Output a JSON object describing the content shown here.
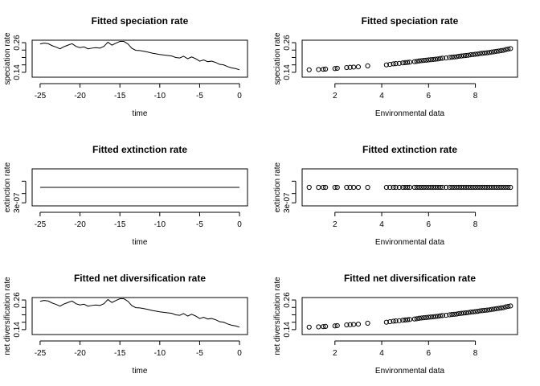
{
  "chart_data": [
    {
      "type": "line",
      "title": "Fitted speciation rate",
      "xlabel": "time",
      "ylabel": "speciation rate",
      "xlim": [
        -26,
        1
      ],
      "ylim": [
        0.12,
        0.27
      ],
      "xticks": [
        -25,
        -20,
        -15,
        -10,
        -5,
        0
      ],
      "xtick_labels": [
        "-25",
        "-20",
        "-15",
        "-10",
        "-5",
        "0"
      ],
      "yticks": [
        0.14,
        0.26
      ],
      "ytick_labels": [
        "0.14",
        "0.26"
      ],
      "yminor_ticks": [
        0.17,
        0.2,
        0.23
      ],
      "series": [
        {
          "x": [
            -25,
            -24.5,
            -24,
            -23.5,
            -23,
            -22.5,
            -22,
            -21.5,
            -21,
            -20.5,
            -20,
            -19.5,
            -19,
            -18.5,
            -18,
            -17.5,
            -17,
            -16.5,
            -16,
            -15.5,
            -15,
            -14.5,
            -14,
            -13.5,
            -13,
            -12.5,
            -12,
            -11.5,
            -11,
            -10.5,
            -10,
            -9.5,
            -9,
            -8.5,
            -8,
            -7.5,
            -7,
            -6.5,
            -6,
            -5.5,
            -5,
            -4.5,
            -4,
            -3.5,
            -3,
            -2.5,
            -2,
            -1.5,
            -1,
            -0.5,
            0
          ],
          "y": [
            0.255,
            0.258,
            0.256,
            0.248,
            0.242,
            0.235,
            0.244,
            0.25,
            0.256,
            0.245,
            0.24,
            0.243,
            0.235,
            0.238,
            0.24,
            0.238,
            0.245,
            0.262,
            0.25,
            0.258,
            0.265,
            0.265,
            0.255,
            0.237,
            0.229,
            0.228,
            0.225,
            0.222,
            0.218,
            0.215,
            0.212,
            0.21,
            0.208,
            0.206,
            0.2,
            0.198,
            0.205,
            0.195,
            0.202,
            0.195,
            0.185,
            0.19,
            0.183,
            0.185,
            0.18,
            0.172,
            0.17,
            0.163,
            0.158,
            0.155,
            0.15
          ]
        }
      ]
    },
    {
      "type": "scatter",
      "title": "Fitted speciation rate",
      "xlabel": "Environmental data",
      "ylabel": "speciation rate",
      "xlim": [
        0.6,
        9.8
      ],
      "ylim": [
        0.12,
        0.27
      ],
      "xticks": [
        2,
        4,
        6,
        8
      ],
      "xtick_labels": [
        "2",
        "4",
        "6",
        "8"
      ],
      "yticks": [
        0.14,
        0.26
      ],
      "ytick_labels": [
        "0.14",
        "0.26"
      ],
      "yminor_ticks": [
        0.17,
        0.2,
        0.23
      ],
      "x": [
        0.9,
        1.3,
        1.5,
        1.6,
        2.0,
        2.1,
        2.5,
        2.65,
        2.8,
        3.0,
        3.4,
        4.2,
        4.35,
        4.5,
        4.6,
        4.75,
        4.9,
        5.0,
        5.1,
        5.2,
        5.4,
        5.5,
        5.6,
        5.7,
        5.8,
        5.9,
        6.0,
        6.1,
        6.2,
        6.3,
        6.4,
        6.5,
        6.6,
        6.75,
        6.9,
        7.0,
        7.1,
        7.2,
        7.3,
        7.4,
        7.5,
        7.6,
        7.7,
        7.8,
        7.9,
        8.0,
        8.1,
        8.2,
        8.3,
        8.4,
        8.5,
        8.6,
        8.7,
        8.8,
        8.9,
        9.0,
        9.1,
        9.2,
        9.3,
        9.4,
        9.5
      ],
      "y": [
        0.15,
        0.151,
        0.152,
        0.153,
        0.155,
        0.156,
        0.159,
        0.16,
        0.161,
        0.162,
        0.166,
        0.17,
        0.172,
        0.174,
        0.175,
        0.176,
        0.178,
        0.179,
        0.18,
        0.181,
        0.183,
        0.184,
        0.186,
        0.187,
        0.188,
        0.189,
        0.19,
        0.191,
        0.192,
        0.193,
        0.194,
        0.196,
        0.197,
        0.198,
        0.2,
        0.201,
        0.202,
        0.203,
        0.205,
        0.206,
        0.207,
        0.208,
        0.209,
        0.211,
        0.212,
        0.213,
        0.214,
        0.216,
        0.217,
        0.218,
        0.219,
        0.22,
        0.222,
        0.223,
        0.225,
        0.226,
        0.228,
        0.229,
        0.232,
        0.234,
        0.236
      ]
    },
    {
      "type": "line",
      "title": "Fitted extinction rate",
      "xlabel": "time",
      "ylabel": "extinction rate",
      "xlim": [
        -26,
        1
      ],
      "ylim": [
        2.4e-07,
        3.6e-07
      ],
      "xticks": [
        -25,
        -20,
        -15,
        -10,
        -5,
        0
      ],
      "xtick_labels": [
        "-25",
        "-20",
        "-15",
        "-10",
        "-5",
        "0"
      ],
      "yticks": [
        2.5e-07
      ],
      "ytick_labels": [
        "3e-07"
      ],
      "yminor_ticks": [
        2.8e-07,
        3.2e-07
      ],
      "series": [
        {
          "x": [
            -25,
            0
          ],
          "y": [
            3e-07,
            3e-07
          ]
        }
      ]
    },
    {
      "type": "scatter",
      "title": "Fitted extinction rate",
      "xlabel": "Environmental data",
      "ylabel": "extinction rate",
      "xlim": [
        0.6,
        9.8
      ],
      "ylim": [
        2.4e-07,
        3.6e-07
      ],
      "xticks": [
        2,
        4,
        6,
        8
      ],
      "xtick_labels": [
        "2",
        "4",
        "6",
        "8"
      ],
      "yticks": [
        2.5e-07
      ],
      "ytick_labels": [
        "3e-07"
      ],
      "yminor_ticks": [
        2.8e-07,
        3.2e-07
      ],
      "x": [
        0.9,
        1.3,
        1.5,
        1.6,
        2.0,
        2.1,
        2.5,
        2.65,
        2.8,
        3.0,
        3.4,
        4.2,
        4.35,
        4.5,
        4.6,
        4.75,
        4.9,
        5.0,
        5.1,
        5.2,
        5.4,
        5.5,
        5.6,
        5.7,
        5.8,
        5.9,
        6.0,
        6.1,
        6.2,
        6.3,
        6.4,
        6.5,
        6.6,
        6.75,
        6.9,
        7.0,
        7.1,
        7.2,
        7.3,
        7.4,
        7.5,
        7.6,
        7.7,
        7.8,
        7.9,
        8.0,
        8.1,
        8.2,
        8.3,
        8.4,
        8.5,
        8.6,
        8.7,
        8.8,
        8.9,
        9.0,
        9.1,
        9.2,
        9.3,
        9.4,
        9.5
      ],
      "y_constant": 3e-07
    },
    {
      "type": "line",
      "title": "Fitted net diversification rate",
      "xlabel": "time",
      "ylabel": "net diversification rate",
      "xlim": [
        -26,
        1
      ],
      "ylim": [
        0.12,
        0.27
      ],
      "xticks": [
        -25,
        -20,
        -15,
        -10,
        -5,
        0
      ],
      "xtick_labels": [
        "-25",
        "-20",
        "-15",
        "-10",
        "-5",
        "0"
      ],
      "yticks": [
        0.14,
        0.26
      ],
      "ytick_labels": [
        "0.14",
        "0.26"
      ],
      "yminor_ticks": [
        0.17,
        0.2,
        0.23
      ],
      "series": [
        {
          "x": [
            -25,
            -24.5,
            -24,
            -23.5,
            -23,
            -22.5,
            -22,
            -21.5,
            -21,
            -20.5,
            -20,
            -19.5,
            -19,
            -18.5,
            -18,
            -17.5,
            -17,
            -16.5,
            -16,
            -15.5,
            -15,
            -14.5,
            -14,
            -13.5,
            -13,
            -12.5,
            -12,
            -11.5,
            -11,
            -10.5,
            -10,
            -9.5,
            -9,
            -8.5,
            -8,
            -7.5,
            -7,
            -6.5,
            -6,
            -5.5,
            -5,
            -4.5,
            -4,
            -3.5,
            -3,
            -2.5,
            -2,
            -1.5,
            -1,
            -0.5,
            0
          ],
          "y": [
            0.255,
            0.258,
            0.256,
            0.248,
            0.242,
            0.235,
            0.244,
            0.25,
            0.256,
            0.245,
            0.24,
            0.243,
            0.235,
            0.238,
            0.24,
            0.238,
            0.245,
            0.262,
            0.25,
            0.258,
            0.265,
            0.265,
            0.255,
            0.237,
            0.229,
            0.228,
            0.225,
            0.222,
            0.218,
            0.215,
            0.212,
            0.21,
            0.208,
            0.206,
            0.2,
            0.198,
            0.205,
            0.195,
            0.202,
            0.195,
            0.185,
            0.19,
            0.183,
            0.185,
            0.18,
            0.172,
            0.17,
            0.163,
            0.158,
            0.155,
            0.15
          ]
        }
      ]
    },
    {
      "type": "scatter",
      "title": "Fitted net diversification rate",
      "xlabel": "Environmental data",
      "ylabel": "net diversification rate",
      "xlim": [
        0.6,
        9.8
      ],
      "ylim": [
        0.12,
        0.27
      ],
      "xticks": [
        2,
        4,
        6,
        8
      ],
      "xtick_labels": [
        "2",
        "4",
        "6",
        "8"
      ],
      "yticks": [
        0.14,
        0.26
      ],
      "ytick_labels": [
        "0.14",
        "0.26"
      ],
      "yminor_ticks": [
        0.17,
        0.2,
        0.23
      ],
      "x": [
        0.9,
        1.3,
        1.5,
        1.6,
        2.0,
        2.1,
        2.5,
        2.65,
        2.8,
        3.0,
        3.4,
        4.2,
        4.35,
        4.5,
        4.6,
        4.75,
        4.9,
        5.0,
        5.1,
        5.2,
        5.4,
        5.5,
        5.6,
        5.7,
        5.8,
        5.9,
        6.0,
        6.1,
        6.2,
        6.3,
        6.4,
        6.5,
        6.6,
        6.75,
        6.9,
        7.0,
        7.1,
        7.2,
        7.3,
        7.4,
        7.5,
        7.6,
        7.7,
        7.8,
        7.9,
        8.0,
        8.1,
        8.2,
        8.3,
        8.4,
        8.5,
        8.6,
        8.7,
        8.8,
        8.9,
        9.0,
        9.1,
        9.2,
        9.3,
        9.4,
        9.5
      ],
      "y": [
        0.15,
        0.151,
        0.152,
        0.153,
        0.155,
        0.156,
        0.159,
        0.16,
        0.161,
        0.162,
        0.166,
        0.17,
        0.172,
        0.174,
        0.175,
        0.176,
        0.178,
        0.179,
        0.18,
        0.181,
        0.183,
        0.184,
        0.186,
        0.187,
        0.188,
        0.189,
        0.19,
        0.191,
        0.192,
        0.193,
        0.194,
        0.196,
        0.197,
        0.198,
        0.2,
        0.201,
        0.202,
        0.203,
        0.205,
        0.206,
        0.207,
        0.208,
        0.209,
        0.211,
        0.212,
        0.213,
        0.214,
        0.216,
        0.217,
        0.218,
        0.219,
        0.22,
        0.222,
        0.223,
        0.225,
        0.226,
        0.228,
        0.229,
        0.232,
        0.234,
        0.236
      ]
    }
  ]
}
